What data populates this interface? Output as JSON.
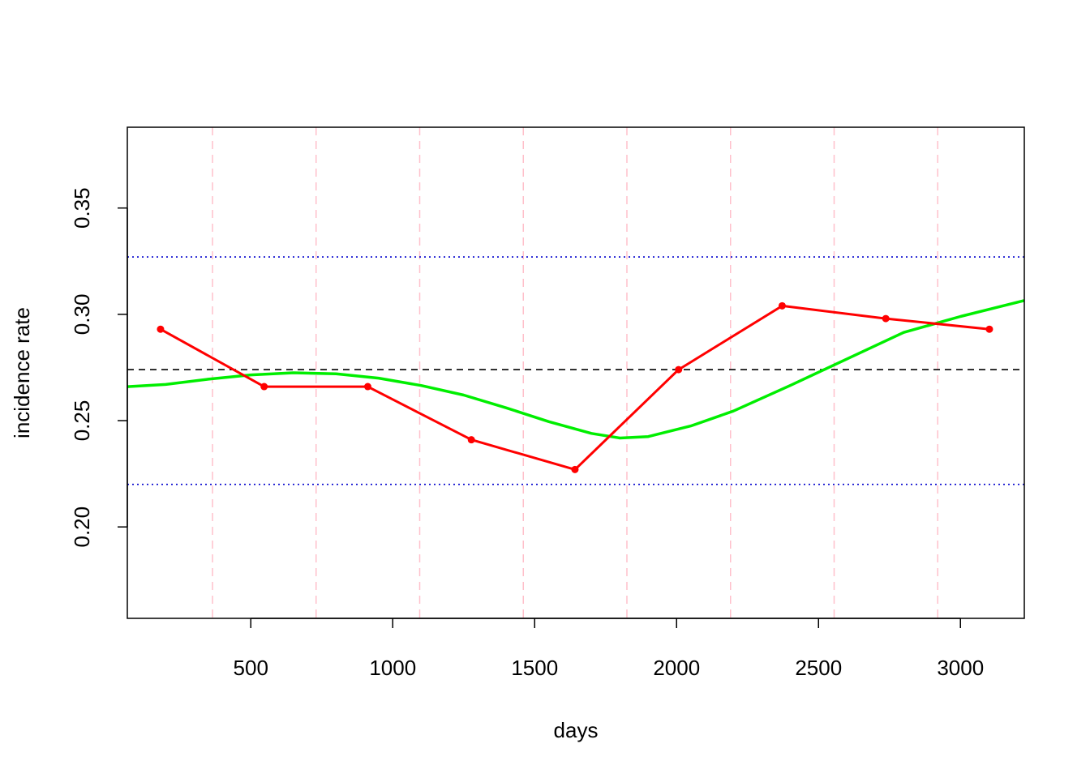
{
  "chart_data": {
    "type": "line",
    "title": "",
    "xlabel": "days",
    "ylabel": "incidence rate",
    "xlim": [
      65,
      3225
    ],
    "ylim": [
      0.157,
      0.388
    ],
    "x_ticks": [
      500,
      1000,
      1500,
      2000,
      2500,
      3000
    ],
    "x_tick_labels": [
      "500",
      "1000",
      "1500",
      "2000",
      "2500",
      "3000"
    ],
    "y_ticks": [
      0.2,
      0.25,
      0.3,
      0.35
    ],
    "y_tick_labels": [
      "0.20",
      "0.25",
      "0.30",
      "0.35"
    ],
    "vertical_gridlines": [
      365,
      730,
      1095,
      1460,
      1825,
      2190,
      2555,
      2920
    ],
    "reference_lines": {
      "mean": 0.274,
      "upper": 0.327,
      "lower": 0.22
    },
    "series": [
      {
        "x": [
          182,
          547,
          912,
          1277,
          1642,
          2007,
          2372,
          2737,
          3102
        ],
        "y": [
          0.293,
          0.266,
          0.266,
          0.241,
          0.227,
          0.274,
          0.304,
          0.298,
          0.293
        ]
      },
      {
        "x": [
          65,
          200,
          350,
          500,
          650,
          800,
          950,
          1100,
          1250,
          1400,
          1550,
          1700,
          1800,
          1900,
          2050,
          2200,
          2400,
          2600,
          2800,
          3000,
          3225
        ],
        "y": [
          0.266,
          0.267,
          0.2695,
          0.2715,
          0.2725,
          0.272,
          0.27,
          0.2665,
          0.262,
          0.256,
          0.2495,
          0.244,
          0.2418,
          0.2425,
          0.2475,
          0.2545,
          0.2665,
          0.279,
          0.2915,
          0.299,
          0.3065
        ]
      }
    ],
    "colors": {
      "observed": "#ff0000",
      "smooth": "#00ee00",
      "gridlines": "#ffc0cb",
      "mean_line": "#000000",
      "limit_lines": "#0000cd"
    }
  }
}
